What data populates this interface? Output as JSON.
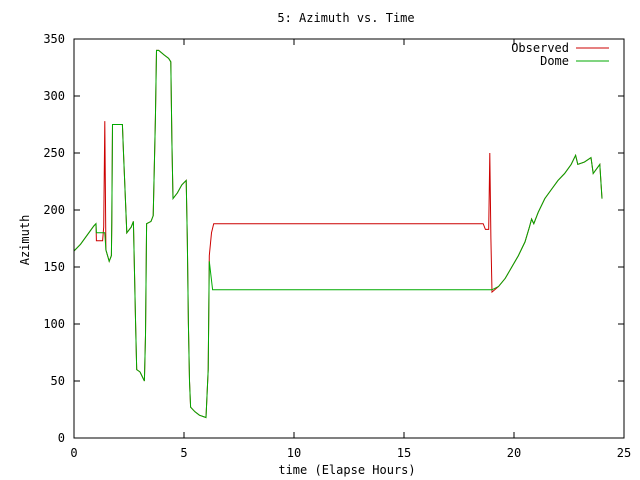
{
  "chart_data": {
    "type": "line",
    "title": "5: Azimuth vs. Time",
    "xlabel": "time (Elapse Hours)",
    "ylabel": "Azimuth",
    "xlim": [
      0,
      25
    ],
    "ylim": [
      0,
      350
    ],
    "xticks": [
      0,
      5,
      10,
      15,
      20,
      25
    ],
    "yticks": [
      0,
      50,
      100,
      150,
      200,
      250,
      300,
      350
    ],
    "grid": false,
    "legend_position": "top-right",
    "series": [
      {
        "name": "Observed",
        "color": "#cc0000",
        "points": [
          [
            0.0,
            164
          ],
          [
            0.3,
            170
          ],
          [
            0.6,
            178
          ],
          [
            0.9,
            186
          ],
          [
            1.0,
            188
          ],
          [
            1.02,
            173
          ],
          [
            1.3,
            173
          ],
          [
            1.35,
            185
          ],
          [
            1.4,
            278
          ],
          [
            1.45,
            165
          ],
          [
            1.6,
            155
          ],
          [
            1.7,
            160
          ],
          [
            1.72,
            190
          ],
          [
            1.75,
            275
          ],
          [
            2.2,
            275
          ],
          [
            2.25,
            250
          ],
          [
            2.4,
            180
          ],
          [
            2.6,
            185
          ],
          [
            2.7,
            190
          ],
          [
            2.8,
            100
          ],
          [
            2.85,
            60
          ],
          [
            3.0,
            58
          ],
          [
            3.2,
            50
          ],
          [
            3.25,
            90
          ],
          [
            3.3,
            188
          ],
          [
            3.5,
            190
          ],
          [
            3.6,
            195
          ],
          [
            3.7,
            280
          ],
          [
            3.75,
            340
          ],
          [
            3.85,
            340
          ],
          [
            4.1,
            336
          ],
          [
            4.3,
            333
          ],
          [
            4.4,
            330
          ],
          [
            4.45,
            260
          ],
          [
            4.5,
            210
          ],
          [
            4.7,
            215
          ],
          [
            4.9,
            222
          ],
          [
            5.1,
            226
          ],
          [
            5.15,
            175
          ],
          [
            5.2,
            100
          ],
          [
            5.25,
            50
          ],
          [
            5.3,
            27
          ],
          [
            5.5,
            23
          ],
          [
            5.7,
            20
          ],
          [
            6.0,
            18
          ],
          [
            6.1,
            60
          ],
          [
            6.15,
            160
          ],
          [
            6.25,
            180
          ],
          [
            6.35,
            188
          ],
          [
            18.6,
            188
          ],
          [
            18.7,
            183
          ],
          [
            18.85,
            183
          ],
          [
            18.9,
            250
          ],
          [
            18.95,
            175
          ],
          [
            19.0,
            128
          ],
          [
            19.3,
            133
          ],
          [
            19.6,
            140
          ],
          [
            19.9,
            150
          ],
          [
            20.2,
            160
          ],
          [
            20.5,
            172
          ],
          [
            20.7,
            185
          ],
          [
            20.8,
            192
          ],
          [
            20.9,
            188
          ],
          [
            21.1,
            198
          ],
          [
            21.4,
            210
          ],
          [
            21.7,
            218
          ],
          [
            22.0,
            226
          ],
          [
            22.3,
            232
          ],
          [
            22.6,
            240
          ],
          [
            22.8,
            248
          ],
          [
            22.9,
            240
          ],
          [
            23.2,
            242
          ],
          [
            23.5,
            246
          ],
          [
            23.6,
            232
          ],
          [
            23.9,
            240
          ],
          [
            24.0,
            210
          ]
        ]
      },
      {
        "name": "Dome",
        "color": "#00aa00",
        "points": [
          [
            0.0,
            164
          ],
          [
            0.3,
            170
          ],
          [
            0.6,
            178
          ],
          [
            0.9,
            186
          ],
          [
            1.0,
            188
          ],
          [
            1.02,
            180
          ],
          [
            1.4,
            180
          ],
          [
            1.45,
            165
          ],
          [
            1.6,
            155
          ],
          [
            1.7,
            160
          ],
          [
            1.72,
            190
          ],
          [
            1.75,
            275
          ],
          [
            2.2,
            275
          ],
          [
            2.25,
            250
          ],
          [
            2.4,
            180
          ],
          [
            2.6,
            185
          ],
          [
            2.7,
            190
          ],
          [
            2.8,
            100
          ],
          [
            2.85,
            60
          ],
          [
            3.0,
            58
          ],
          [
            3.2,
            50
          ],
          [
            3.25,
            90
          ],
          [
            3.3,
            188
          ],
          [
            3.5,
            190
          ],
          [
            3.6,
            195
          ],
          [
            3.7,
            280
          ],
          [
            3.75,
            340
          ],
          [
            3.85,
            340
          ],
          [
            4.1,
            336
          ],
          [
            4.3,
            333
          ],
          [
            4.4,
            330
          ],
          [
            4.45,
            260
          ],
          [
            4.5,
            210
          ],
          [
            4.7,
            215
          ],
          [
            4.9,
            222
          ],
          [
            5.1,
            226
          ],
          [
            5.15,
            175
          ],
          [
            5.2,
            100
          ],
          [
            5.25,
            50
          ],
          [
            5.3,
            27
          ],
          [
            5.5,
            23
          ],
          [
            5.7,
            20
          ],
          [
            6.0,
            18
          ],
          [
            6.1,
            60
          ],
          [
            6.15,
            155
          ],
          [
            6.3,
            130
          ],
          [
            19.0,
            130
          ],
          [
            19.3,
            133
          ],
          [
            19.6,
            140
          ],
          [
            19.9,
            150
          ],
          [
            20.2,
            160
          ],
          [
            20.5,
            172
          ],
          [
            20.7,
            185
          ],
          [
            20.8,
            192
          ],
          [
            20.9,
            188
          ],
          [
            21.1,
            198
          ],
          [
            21.4,
            210
          ],
          [
            21.7,
            218
          ],
          [
            22.0,
            226
          ],
          [
            22.3,
            232
          ],
          [
            22.6,
            240
          ],
          [
            22.8,
            248
          ],
          [
            22.9,
            240
          ],
          [
            23.2,
            242
          ],
          [
            23.5,
            246
          ],
          [
            23.6,
            232
          ],
          [
            23.9,
            240
          ],
          [
            24.0,
            210
          ]
        ]
      }
    ]
  }
}
